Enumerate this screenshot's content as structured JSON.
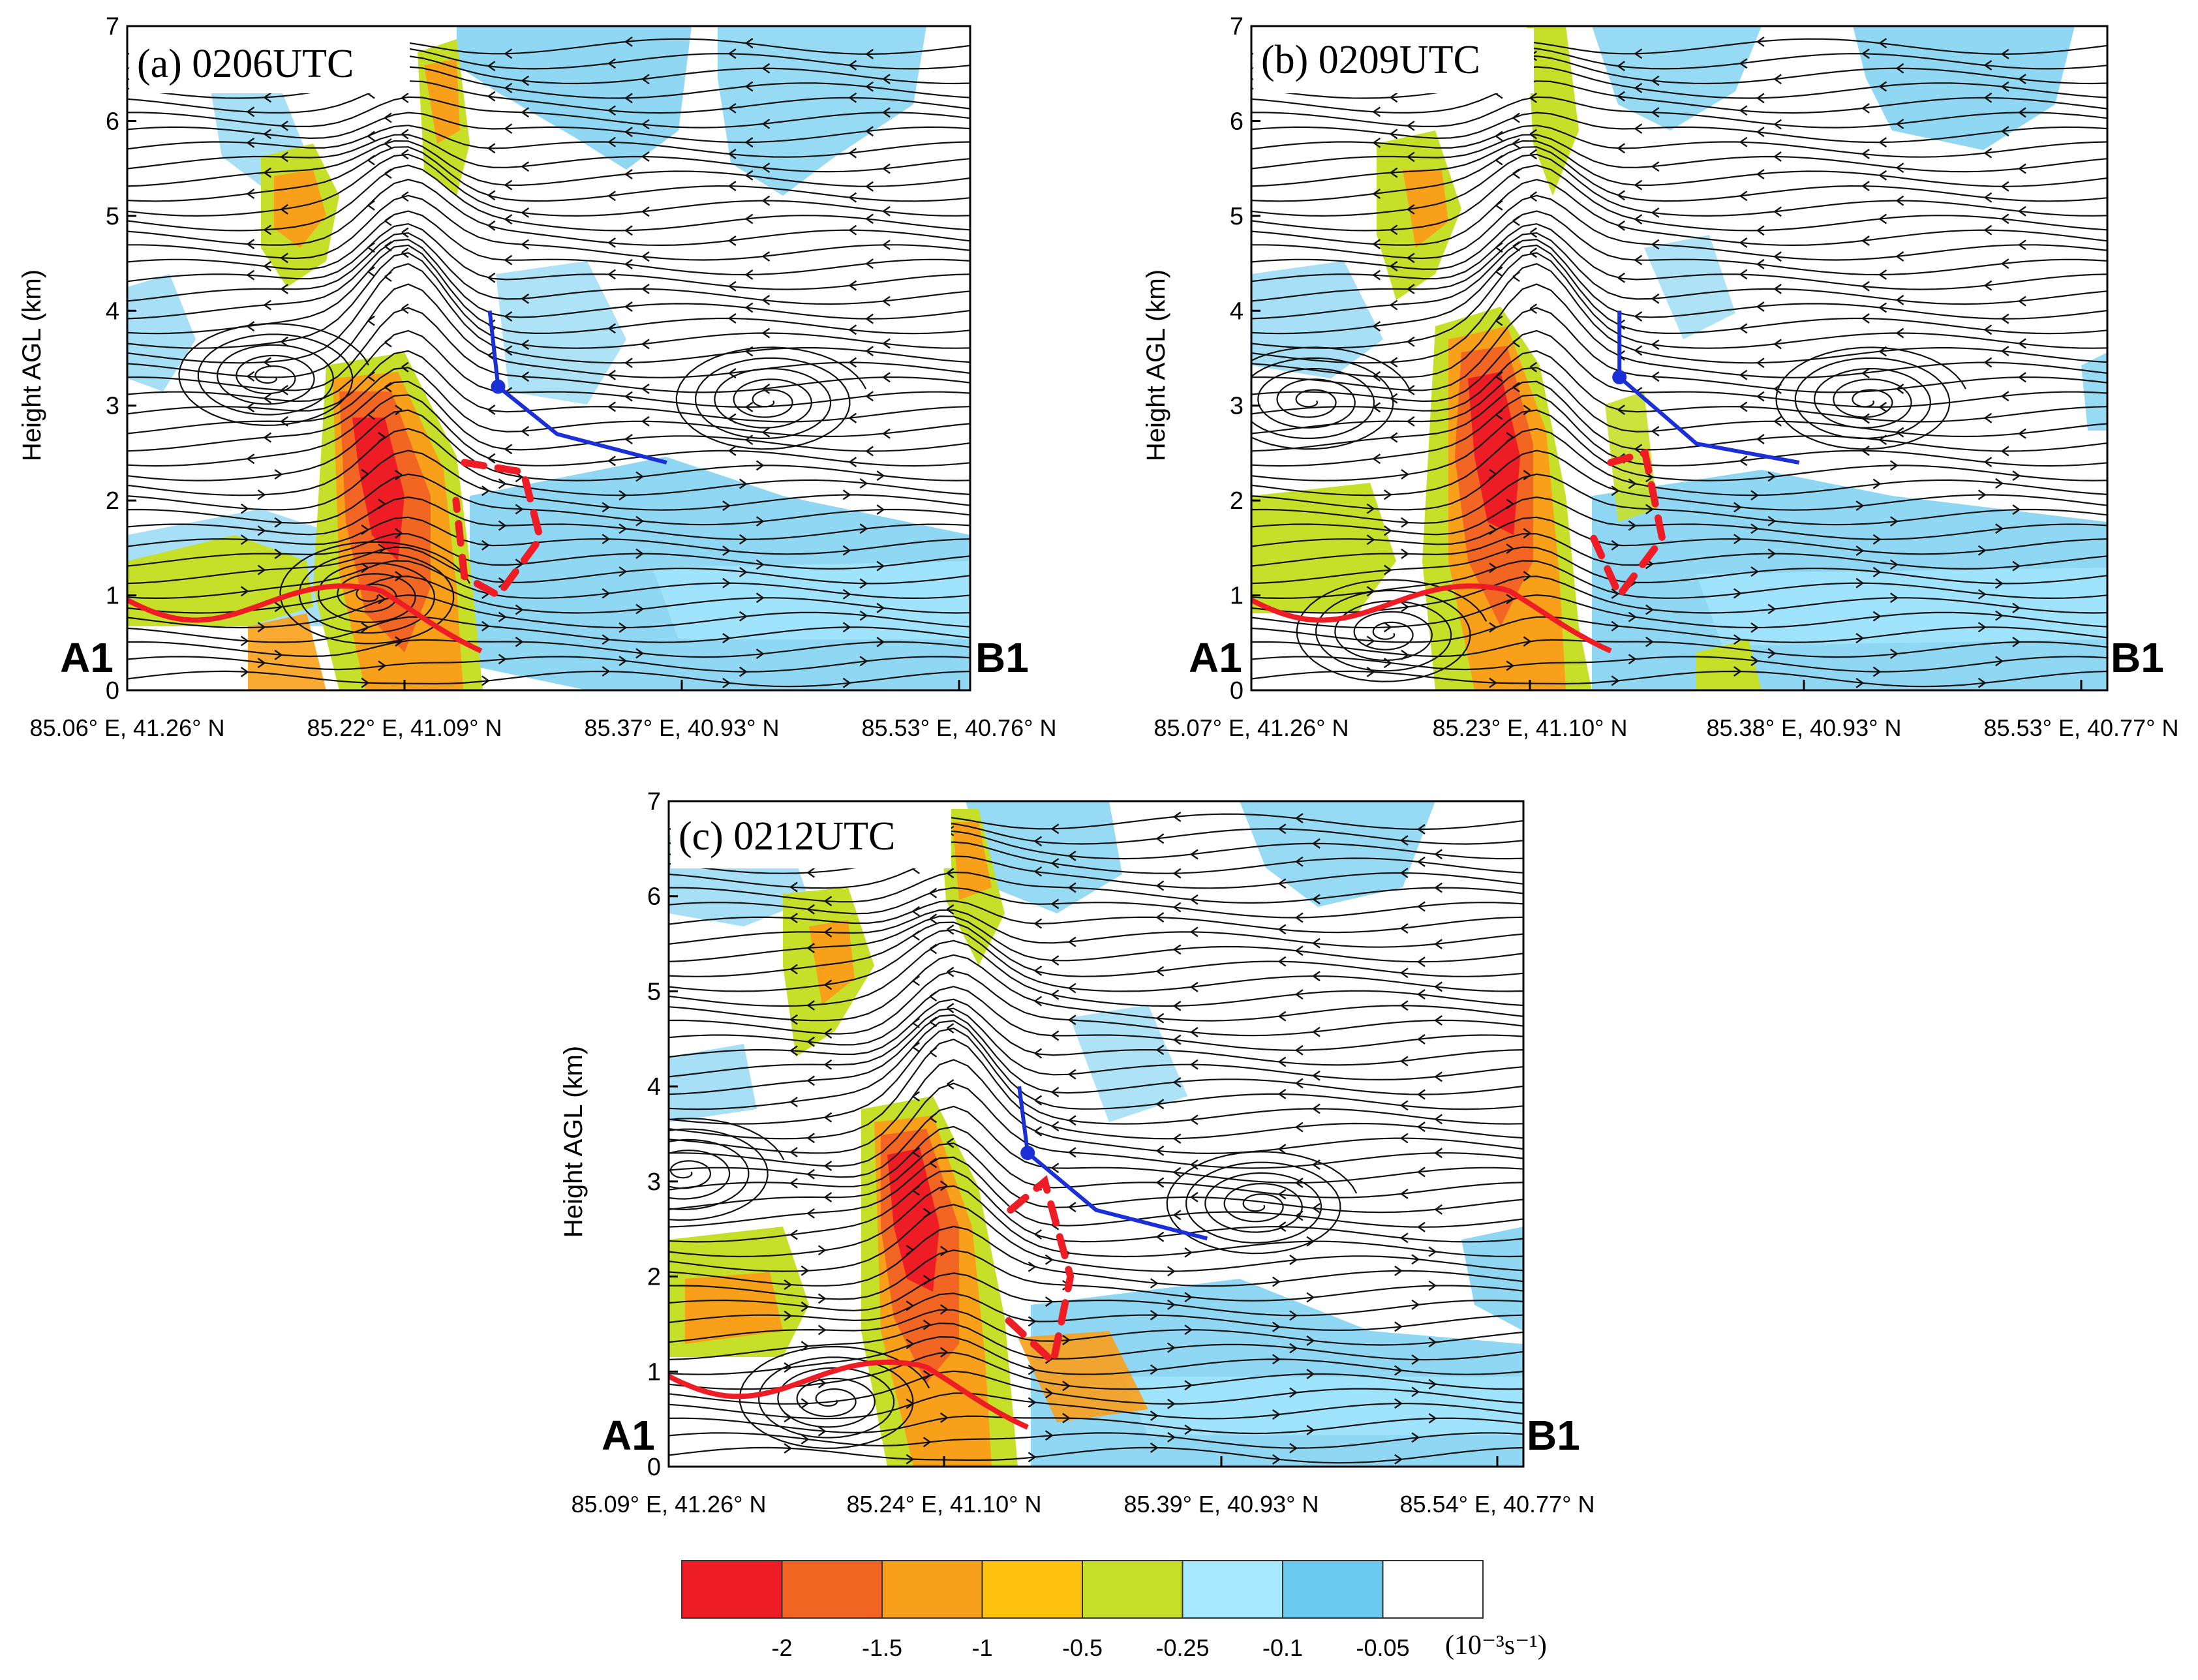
{
  "chart_data": [
    {
      "type": "heatmap",
      "title": "(a) 0206UTC",
      "ylabel": "Height AGL (km)",
      "ylim": [
        0,
        7
      ],
      "yticks": [
        "0",
        "1",
        "2",
        "3",
        "4",
        "5",
        "6",
        "7"
      ],
      "xtick_labels": [
        "85.06° E, 41.26° N",
        "85.22° E, 41.09° N",
        "85.37° E, 40.93° N",
        "85.53° E, 40.76° N"
      ],
      "start_label": "A1",
      "end_label": "B1",
      "features": {
        "vortices_km": [
          [
            0.17,
            3.3
          ],
          [
            0.76,
            3.05
          ],
          [
            0.29,
            1.0
          ]
        ],
        "blue_line": [
          [
            0.43,
            4.0
          ],
          [
            0.44,
            3.2
          ],
          [
            0.51,
            2.7
          ],
          [
            0.64,
            2.4
          ]
        ],
        "red_dashed": [
          [
            0.4,
            2.4
          ],
          [
            0.47,
            2.3
          ],
          [
            0.49,
            1.6
          ],
          [
            0.44,
            1.0
          ],
          [
            0.4,
            1.2
          ],
          [
            0.39,
            2.0
          ]
        ]
      }
    },
    {
      "type": "heatmap",
      "title": "(b) 0209UTC",
      "ylabel": "Height AGL (km)",
      "ylim": [
        0,
        7
      ],
      "yticks": [
        "0",
        "1",
        "2",
        "3",
        "4",
        "5",
        "6",
        "7"
      ],
      "xtick_labels": [
        "85.07° E, 41.26° N",
        "85.23° E, 41.10° N",
        "85.38° E, 40.93° N",
        "85.53° E, 40.77° N"
      ],
      "start_label": "A1",
      "end_label": "B1",
      "features": {
        "vortices_km": [
          [
            0.07,
            3.05
          ],
          [
            0.72,
            3.05
          ],
          [
            0.16,
            0.6
          ]
        ],
        "blue_line": [
          [
            0.43,
            4.0
          ],
          [
            0.43,
            3.3
          ],
          [
            0.52,
            2.6
          ],
          [
            0.64,
            2.4
          ]
        ],
        "red_dashed": [
          [
            0.42,
            2.4
          ],
          [
            0.46,
            2.5
          ],
          [
            0.48,
            1.6
          ],
          [
            0.43,
            1.0
          ],
          [
            0.4,
            1.6
          ]
        ]
      }
    },
    {
      "type": "heatmap",
      "title": "(c) 0212UTC",
      "ylabel": "Height AGL (km)",
      "ylim": [
        0,
        7
      ],
      "yticks": [
        "0",
        "1",
        "2",
        "3",
        "4",
        "5",
        "6",
        "7"
      ],
      "xtick_labels": [
        "85.09° E, 41.26° N",
        "85.24° E, 41.10° N",
        "85.39° E, 40.93° N",
        "85.54° E, 40.77° N"
      ],
      "start_label": "A1",
      "end_label": "B1",
      "features": {
        "vortices_km": [
          [
            0.69,
            2.75
          ],
          [
            0.02,
            3.1
          ],
          [
            0.19,
            0.7
          ]
        ],
        "blue_line": [
          [
            0.41,
            4.0
          ],
          [
            0.42,
            3.3
          ],
          [
            0.5,
            2.7
          ],
          [
            0.63,
            2.4
          ]
        ],
        "red_dashed": [
          [
            0.4,
            2.7
          ],
          [
            0.44,
            3.0
          ],
          [
            0.47,
            2.0
          ],
          [
            0.45,
            1.1
          ],
          [
            0.39,
            1.6
          ]
        ]
      }
    }
  ],
  "colorbar": {
    "colors": [
      "#ee1c25",
      "#f26522",
      "#f9a01b",
      "#ffc20e",
      "#c6e02a",
      "#a6e8ff",
      "#6bcaf0",
      "#ffffff"
    ],
    "tick_labels": [
      "-2",
      "-1.5",
      "-1",
      "-0.5",
      "-0.25",
      "-0.1",
      "-0.05"
    ],
    "unit": "(10⁻³s⁻¹)"
  }
}
